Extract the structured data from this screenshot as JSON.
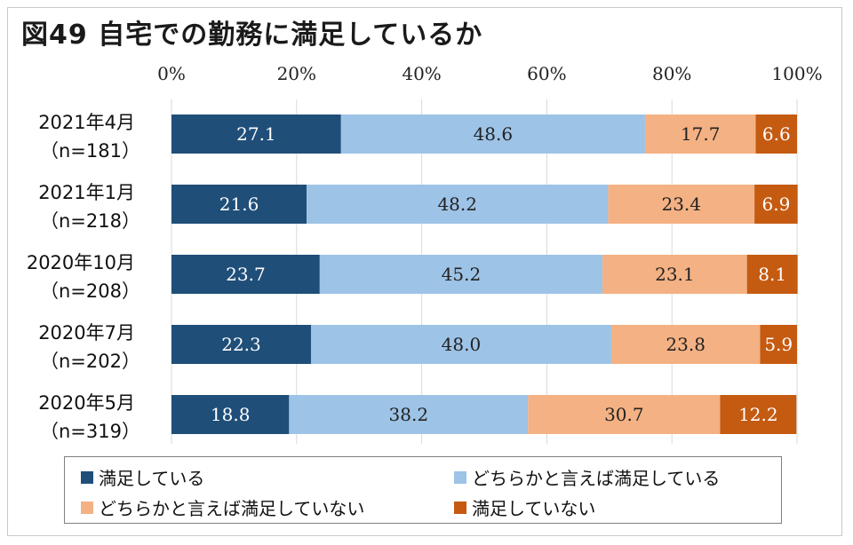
{
  "title": "図49 自宅での勤務に満足しているか",
  "chart_data": {
    "type": "bar",
    "orientation": "horizontal",
    "stacked": true,
    "title": "図49 自宅での勤務に満足しているか",
    "xlim": [
      0,
      100
    ],
    "x_ticks": [
      "0%",
      "20%",
      "40%",
      "60%",
      "80%",
      "100%"
    ],
    "categories": [
      {
        "label": "2021年4月",
        "n": "（n=181）"
      },
      {
        "label": "2021年1月",
        "n": "（n=218）"
      },
      {
        "label": "2020年10月",
        "n": "（n=208）"
      },
      {
        "label": "2020年7月",
        "n": "（n=202）"
      },
      {
        "label": "2020年5月",
        "n": "（n=319）"
      }
    ],
    "series": [
      {
        "name": "満足している",
        "color": "#1f4e79",
        "label_color": "#ffffff",
        "values": [
          27.1,
          21.6,
          23.7,
          22.3,
          18.8
        ]
      },
      {
        "name": "どちらかと言えば満足している",
        "color": "#9dc3e6",
        "label_color": "#222222",
        "values": [
          48.6,
          48.2,
          45.2,
          48.0,
          38.2
        ]
      },
      {
        "name": "どちらかと言えば満足していない",
        "color": "#f4b183",
        "label_color": "#222222",
        "values": [
          17.7,
          23.4,
          23.1,
          23.8,
          30.7
        ]
      },
      {
        "name": "満足していない",
        "color": "#c55a11",
        "label_color": "#ffffff",
        "values": [
          6.6,
          6.9,
          8.1,
          5.9,
          12.2
        ]
      }
    ],
    "value_labels": [
      [
        "27.1",
        "48.6",
        "17.7",
        "6.6"
      ],
      [
        "21.6",
        "48.2",
        "23.4",
        "6.9"
      ],
      [
        "23.7",
        "45.2",
        "23.1",
        "8.1"
      ],
      [
        "22.3",
        "48.0",
        "23.8",
        "5.9"
      ],
      [
        "18.8",
        "38.2",
        "30.7",
        "12.2"
      ]
    ],
    "legend": {
      "placement": "bottom",
      "entries": [
        "満足している",
        "どちらかと言えば満足している",
        "どちらかと言えば満足していない",
        "満足していない"
      ]
    }
  }
}
